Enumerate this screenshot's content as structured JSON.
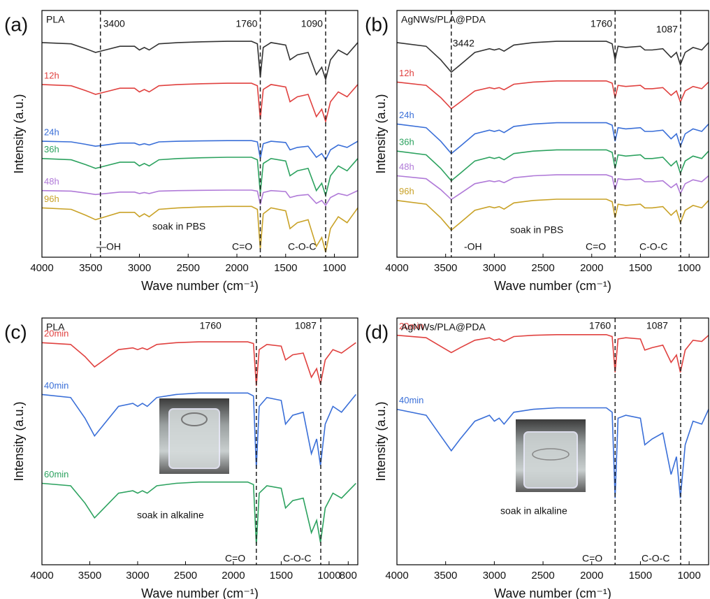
{
  "chart_data": [
    {
      "type": "line",
      "panel": "(a)",
      "label": "PLA",
      "x_label": "Wave number (cm⁻¹)",
      "y_label": "Intensity (a.u.)",
      "xlim": [
        4000,
        760
      ],
      "xticks": [
        4000,
        3500,
        3000,
        2500,
        2000,
        1500,
        1000
      ],
      "ylim": [
        0,
        100
      ],
      "vlines": [
        3400,
        1760,
        1090
      ],
      "annotations": [
        "—OH",
        "C=O",
        "C-O-C",
        "soak in PBS"
      ],
      "x": [
        4000,
        3700,
        3550,
        3450,
        3350,
        3200,
        3050,
        3000,
        2950,
        2900,
        2800,
        2600,
        2360,
        2100,
        1850,
        1790,
        1760,
        1730,
        1650,
        1500,
        1455,
        1380,
        1270,
        1185,
        1130,
        1090,
        1040,
        960,
        870,
        760
      ],
      "series": [
        {
          "color": "#333333",
          "values": [
            87,
            86.5,
            84.5,
            83,
            84,
            85.5,
            85.5,
            84,
            85,
            84,
            86.5,
            87,
            87.3,
            87.5,
            87.5,
            86.5,
            73,
            85,
            87,
            86,
            80,
            82,
            83,
            74,
            77,
            72,
            80,
            84,
            82,
            87
          ]
        },
        {
          "name": "12h",
          "color": "#e0413f",
          "values": [
            70,
            69.5,
            67.5,
            66,
            67,
            68.5,
            68.5,
            67,
            68,
            67,
            69.5,
            70,
            70.3,
            70.5,
            70.5,
            69.5,
            56,
            68,
            70,
            69,
            63,
            65,
            66,
            57,
            60,
            55,
            63,
            67,
            65,
            70
          ]
        },
        {
          "name": "24h",
          "color": "#3a6fd8",
          "values": [
            47,
            46.75,
            45.75,
            45,
            45.5,
            46.25,
            46.25,
            45.5,
            46,
            45.5,
            46.75,
            47,
            47.15,
            47.25,
            47.25,
            46.75,
            40,
            46,
            47,
            46.5,
            43.5,
            44.5,
            45,
            40.5,
            42,
            39.5,
            43.5,
            45.5,
            44.5,
            47
          ]
        },
        {
          "name": "36h",
          "color": "#2ca25f",
          "values": [
            40,
            39.5,
            37.5,
            36,
            37,
            38.5,
            38.5,
            37,
            38,
            37,
            39.5,
            40,
            40.3,
            40.5,
            40.5,
            39.5,
            26,
            38,
            40,
            39,
            33,
            35,
            36,
            27,
            30,
            25,
            33,
            37,
            35,
            40
          ]
        },
        {
          "name": "48h",
          "color": "#b07ad8",
          "values": [
            27,
            26.8,
            26,
            25.4,
            25.8,
            26.4,
            26.4,
            25.8,
            26.2,
            25.8,
            26.8,
            27,
            27.12,
            27.2,
            27.2,
            26.8,
            21.4,
            26.2,
            27,
            26.6,
            24.2,
            25,
            25.4,
            21.8,
            23,
            21,
            24.2,
            25.8,
            25,
            27
          ]
        },
        {
          "name": "96h",
          "color": "#c9a227",
          "values": [
            20,
            19.4,
            17,
            15.2,
            16.4,
            18.2,
            18.2,
            16.4,
            17.6,
            16.4,
            19.4,
            20,
            20.36,
            20.6,
            20.6,
            19.4,
            3.2,
            17.6,
            20,
            18.8,
            11.6,
            14,
            15.2,
            4.4,
            8,
            2,
            11.6,
            16.4,
            14,
            20
          ]
        }
      ]
    },
    {
      "type": "line",
      "panel": "(b)",
      "label": "AgNWs/PLA@PDA",
      "x_label": "Wave number (cm⁻¹)",
      "y_label": "Intensity (a.u.)",
      "xlim": [
        4000,
        800
      ],
      "xticks": [
        4000,
        3500,
        3000,
        2500,
        2000,
        1500,
        1000
      ],
      "ylim": [
        0,
        100
      ],
      "vlines": [
        3442,
        1760,
        1087
      ],
      "annotations": [
        "-OH",
        "C=O",
        "C-O-C",
        "soak in PBS"
      ],
      "x": [
        4000,
        3700,
        3550,
        3442,
        3350,
        3200,
        3050,
        3000,
        2950,
        2900,
        2800,
        2600,
        2360,
        2100,
        1850,
        1790,
        1760,
        1730,
        1650,
        1500,
        1455,
        1380,
        1270,
        1185,
        1130,
        1090,
        1040,
        960,
        870,
        800
      ],
      "series": [
        {
          "color": "#333333",
          "values": [
            87,
            85.5,
            80,
            75,
            78,
            83,
            84.5,
            84,
            84.5,
            83.5,
            86,
            87,
            87.5,
            87.5,
            87.5,
            86.5,
            80,
            85.5,
            85,
            85.5,
            84,
            84,
            84.5,
            81,
            83,
            78,
            83,
            85,
            84,
            87
          ]
        },
        {
          "name": "12h",
          "color": "#e0413f",
          "values": [
            71,
            69.65,
            64.7,
            60.2,
            62.9,
            67.4,
            68.75,
            68.3,
            68.75,
            67.85,
            70.1,
            71,
            71.45,
            71.45,
            71.45,
            70.55,
            64.7,
            69.65,
            69.2,
            69.65,
            68.3,
            68.3,
            68.75,
            65.6,
            67.4,
            62.9,
            67.4,
            69.2,
            68.3,
            71
          ]
        },
        {
          "name": "24h",
          "color": "#3a6fd8",
          "values": [
            54,
            52.5,
            47,
            42,
            45,
            50,
            51.5,
            51,
            51.5,
            50.5,
            53,
            54,
            54.5,
            54.5,
            54.5,
            53.5,
            47,
            52.5,
            52,
            52.5,
            51,
            51,
            51.5,
            48,
            50,
            45,
            50,
            52,
            51,
            54
          ]
        },
        {
          "name": "36h",
          "color": "#2ca25f",
          "values": [
            43,
            41.5,
            36,
            31,
            34,
            39,
            40.5,
            40,
            40.5,
            39.5,
            42,
            43,
            43.5,
            43.5,
            43.5,
            42.5,
            36,
            41.5,
            41,
            41.5,
            40,
            40,
            40.5,
            37,
            39,
            34,
            39,
            41,
            40,
            43
          ]
        },
        {
          "name": "48h",
          "color": "#b07ad8",
          "values": [
            33,
            31.8,
            27.4,
            23.4,
            25.8,
            29.8,
            31,
            30.6,
            31,
            30.2,
            32.2,
            33,
            33.4,
            33.4,
            33.4,
            32.6,
            27.4,
            31.8,
            31.4,
            31.8,
            30.6,
            30.6,
            31,
            28.2,
            29.8,
            25.8,
            29.8,
            31.4,
            30.6,
            33
          ]
        },
        {
          "name": "96h",
          "color": "#c9a227",
          "values": [
            23,
            21.5,
            16,
            11,
            14,
            19,
            20.5,
            20,
            20.5,
            19.5,
            22,
            23,
            23.5,
            23.5,
            23.5,
            22.5,
            16,
            21.5,
            21,
            21.5,
            20,
            20,
            20.5,
            17,
            19,
            14,
            19,
            21,
            20,
            23
          ]
        }
      ]
    },
    {
      "type": "line",
      "panel": "(c)",
      "label": "PLA",
      "x_label": "Wave number (cm⁻¹)",
      "y_label": "Intensity (a.u.)",
      "xlim": [
        4000,
        700
      ],
      "xticks": [
        4000,
        3500,
        3000,
        2500,
        2000,
        1500,
        1000,
        800
      ],
      "ylim": [
        0,
        100
      ],
      "vlines": [
        1760,
        1087
      ],
      "annotations": [
        "C=O",
        "C-O-C",
        "soak in alkaline"
      ],
      "x": [
        4000,
        3700,
        3550,
        3450,
        3350,
        3200,
        3050,
        3000,
        2950,
        2900,
        2800,
        2600,
        2360,
        2100,
        1850,
        1790,
        1760,
        1730,
        1650,
        1500,
        1455,
        1380,
        1270,
        1185,
        1130,
        1090,
        1040,
        960,
        870,
        720
      ],
      "series": [
        {
          "name": "20min",
          "color": "#e0413f",
          "values": [
            90,
            89.3,
            84.4,
            80.2,
            83,
            87.2,
            87.9,
            87.2,
            87.9,
            87.2,
            89.3,
            90,
            90.35,
            90.35,
            90.35,
            89.65,
            72.5,
            87.2,
            89.3,
            88.6,
            83,
            85.1,
            85.8,
            76,
            79.5,
            73.2,
            83,
            87.2,
            85.8,
            90
          ]
        },
        {
          "name": "40min",
          "color": "#3a6fd8",
          "values": [
            69,
            67.8,
            59.4,
            52.2,
            57,
            64.2,
            65.4,
            64.2,
            65.4,
            64.2,
            67.8,
            69,
            69.6,
            69.6,
            69.6,
            68.4,
            39,
            64.2,
            67.8,
            66.6,
            57,
            60.6,
            61.8,
            45,
            51,
            40.2,
            57,
            64.2,
            61.8,
            69
          ]
        },
        {
          "name": "60min",
          "color": "#2ca25f",
          "values": [
            33,
            32,
            25,
            19,
            23,
            29,
            30,
            29,
            30,
            29,
            32,
            33,
            33.5,
            33.5,
            33.5,
            32.5,
            8,
            29,
            32,
            31,
            23,
            26,
            27,
            13,
            18,
            9,
            23,
            29,
            27,
            33
          ]
        }
      ]
    },
    {
      "type": "line",
      "panel": "(d)",
      "label": "AgNWs/PLA@PDA",
      "x_label": "Wave number (cm⁻¹)",
      "y_label": "Intensity (a.u.)",
      "xlim": [
        4000,
        800
      ],
      "xticks": [
        4000,
        3500,
        3000,
        2500,
        2000,
        1500,
        1000
      ],
      "ylim": [
        0,
        100
      ],
      "vlines": [
        1760,
        1087
      ],
      "annotations": [
        "C=O",
        "C-O-C",
        "soak in alkaline"
      ],
      "x": [
        4000,
        3700,
        3550,
        3442,
        3350,
        3200,
        3050,
        3000,
        2950,
        2900,
        2800,
        2600,
        2360,
        2100,
        1850,
        1790,
        1760,
        1730,
        1650,
        1500,
        1455,
        1380,
        1270,
        1185,
        1130,
        1090,
        1040,
        960,
        870,
        800
      ],
      "series": [
        {
          "name": "20min",
          "color": "#e0413f",
          "values": [
            93,
            92,
            88.5,
            86,
            88,
            91,
            92,
            91,
            91.5,
            90.5,
            92.5,
            93,
            93.25,
            93.25,
            93.25,
            92.5,
            78,
            91.5,
            92,
            91.5,
            87,
            88,
            89,
            82,
            85,
            78,
            87,
            91,
            90.5,
            93
          ]
        },
        {
          "name": "40min",
          "color": "#3a6fd8",
          "values": [
            63,
            60.6,
            52.2,
            46.2,
            51,
            58.2,
            60.6,
            58.2,
            59.4,
            57,
            61.8,
            63,
            63.6,
            63.6,
            63.6,
            61.8,
            27,
            59.4,
            60.6,
            59.4,
            48.6,
            51,
            53.4,
            36.6,
            43.8,
            27,
            48.6,
            58.2,
            57,
            63
          ]
        }
      ]
    }
  ]
}
